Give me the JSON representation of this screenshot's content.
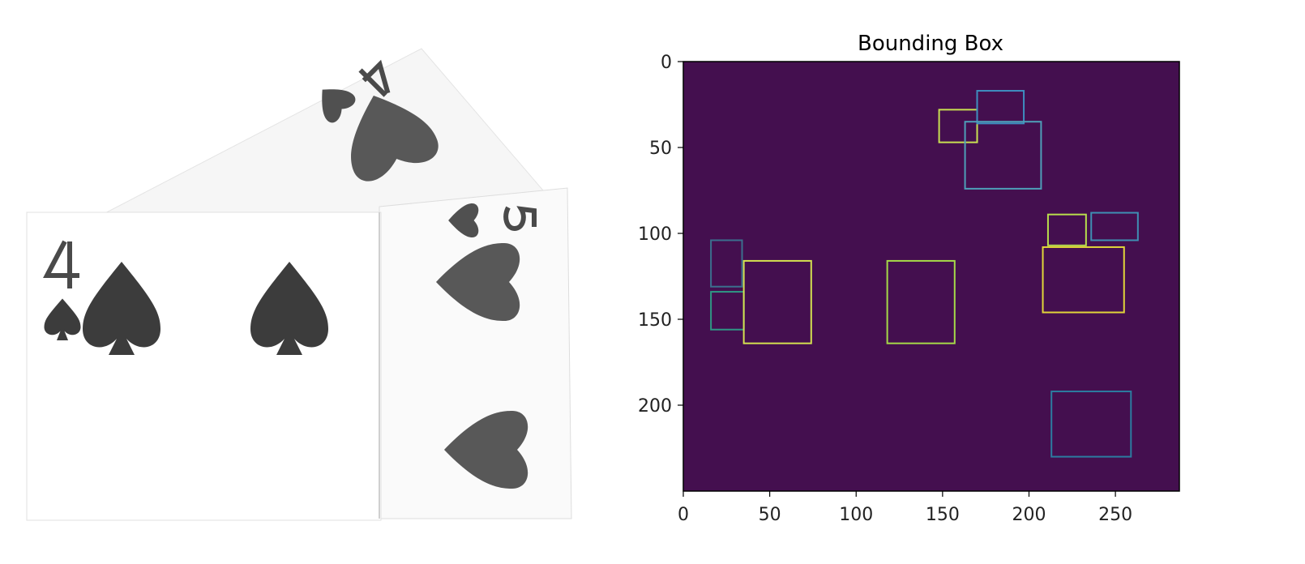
{
  "left_image": {
    "description_cards": [
      {
        "rank": "4",
        "suit": "spade"
      },
      {
        "rank": "4",
        "suit": "heart"
      },
      {
        "rank": "5",
        "suit": "heart"
      }
    ]
  },
  "plot": {
    "title": "Bounding Box",
    "colors": {
      "background": "#440f4f",
      "frame": "#000000",
      "tick_text": "#222222"
    },
    "x_ticks": [
      "0",
      "50",
      "100",
      "150",
      "200",
      "250"
    ],
    "y_ticks": [
      "0",
      "50",
      "100",
      "150",
      "200"
    ]
  },
  "chart_data": {
    "type": "other",
    "title": "Bounding Box",
    "xlim": [
      0,
      287
    ],
    "ylim": [
      250,
      0
    ],
    "x_ticks": [
      0,
      50,
      100,
      150,
      200,
      250
    ],
    "y_ticks": [
      0,
      50,
      100,
      150,
      200
    ],
    "boxes": [
      {
        "label": "4",
        "x0": 16,
        "y0": 104,
        "x1": 34,
        "y1": 131,
        "edge": "#3b6f8e"
      },
      {
        "label": "small spade",
        "x0": 16,
        "y0": 134,
        "x1": 35,
        "y1": 156,
        "edge": "#2f9784"
      },
      {
        "label": "spade 1",
        "x0": 35,
        "y0": 116,
        "x1": 74,
        "y1": 164,
        "edge": "#d4e150"
      },
      {
        "label": "spade 2",
        "x0": 118,
        "y0": 116,
        "x1": 157,
        "y1": 164,
        "edge": "#a6d949"
      },
      {
        "label": "small heart top",
        "x0": 148,
        "y0": 28,
        "x1": 170,
        "y1": 47,
        "edge": "#c8e052"
      },
      {
        "label": "rank 4 top",
        "x0": 170,
        "y0": 17,
        "x1": 197,
        "y1": 36,
        "edge": "#3e8ec0"
      },
      {
        "label": "heart top",
        "x0": 163,
        "y0": 35,
        "x1": 207,
        "y1": 74,
        "edge": "#4e9fb8"
      },
      {
        "label": "small heart right",
        "x0": 211,
        "y0": 89,
        "x1": 233,
        "y1": 107,
        "edge": "#b8dd4c"
      },
      {
        "label": "rank 5",
        "x0": 236,
        "y0": 88,
        "x1": 263,
        "y1": 104,
        "edge": "#3f8fb3"
      },
      {
        "label": "heart right",
        "x0": 208,
        "y0": 108,
        "x1": 255,
        "y1": 146,
        "edge": "#e1d53a"
      },
      {
        "label": "heart bottom",
        "x0": 213,
        "y0": 192,
        "x1": 259,
        "y1": 230,
        "edge": "#2c7ca0"
      }
    ]
  }
}
